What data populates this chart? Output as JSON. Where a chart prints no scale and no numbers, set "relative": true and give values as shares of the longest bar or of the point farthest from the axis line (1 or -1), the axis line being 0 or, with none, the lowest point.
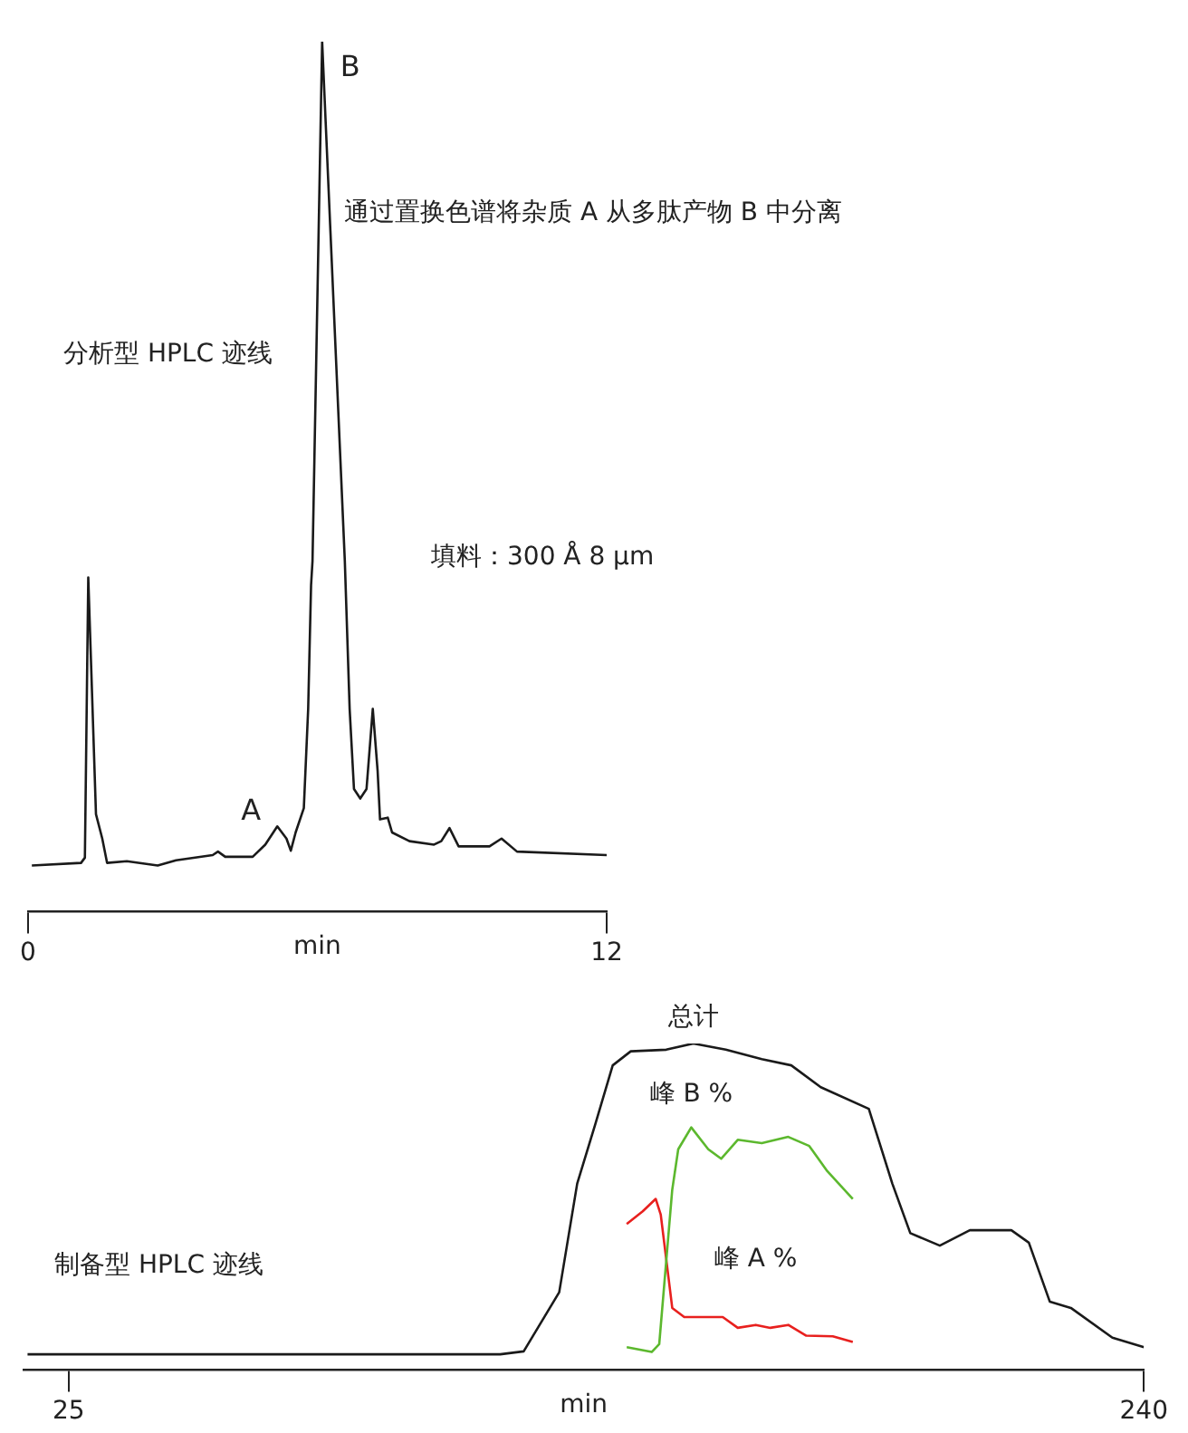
{
  "chart_data": [
    {
      "type": "line",
      "title": "通过置换色谱将杂质 A 从多肽产物 B 中分离",
      "xlabel": "min",
      "xlim": [
        0,
        12
      ],
      "xticks": [
        0,
        12
      ],
      "relative": true,
      "grid": false,
      "legend": false,
      "annotations": [
        "分析型 HPLC 迹线",
        "填料：300 Å 8 µm",
        {
          "text": "B",
          "x": 6.1,
          "y": 1.0
        },
        {
          "text": "A",
          "x": 5.17,
          "y": 0.098
        }
      ],
      "series": [
        {
          "color": "#1a1a1a",
          "x": [
            0.08,
            1.1,
            1.18,
            1.25,
            1.41,
            1.54,
            1.64,
            2.05,
            2.69,
            3.07,
            3.83,
            3.94,
            4.09,
            4.66,
            4.92,
            5.17,
            5.36,
            5.45,
            5.55,
            5.72,
            5.81,
            5.87,
            5.9,
            6.1,
            6.57,
            6.67,
            6.76,
            6.89,
            7.02,
            7.15,
            7.25,
            7.3,
            7.46,
            7.55,
            7.91,
            8.42,
            8.57,
            8.74,
            8.93,
            9.57,
            9.82,
            10.14,
            12.0
          ],
          "values": [
            0.053,
            0.056,
            0.062,
            0.384,
            0.112,
            0.084,
            0.056,
            0.058,
            0.053,
            0.059,
            0.065,
            0.069,
            0.063,
            0.063,
            0.077,
            0.098,
            0.084,
            0.07,
            0.091,
            0.119,
            0.233,
            0.375,
            0.403,
            1.0,
            0.403,
            0.233,
            0.141,
            0.13,
            0.141,
            0.233,
            0.162,
            0.106,
            0.108,
            0.091,
            0.081,
            0.077,
            0.081,
            0.096,
            0.075,
            0.075,
            0.084,
            0.069,
            0.065
          ]
        }
      ]
    },
    {
      "type": "line",
      "xlabel": "min",
      "xlim": [
        16,
        240
      ],
      "xticks": [
        25,
        240
      ],
      "relative": true,
      "grid": false,
      "legend": false,
      "annotations": [
        "制备型 HPLC 迹线"
      ],
      "series": [
        {
          "name": "总计",
          "color": "#1a1a1a",
          "x": [
            16.8,
            111.3,
            116,
            123.1,
            126.7,
            130.3,
            133.8,
            137.4,
            144.5,
            149.9,
            156.4,
            163.6,
            169.5,
            175.4,
            185,
            189.7,
            193.3,
            199.2,
            205.2,
            213.5,
            217,
            221.2,
            225.4,
            233.7,
            240
          ],
          "values": [
            0.048,
            0.048,
            0.057,
            0.238,
            0.571,
            0.752,
            0.933,
            0.976,
            0.981,
            1.0,
            0.981,
            0.952,
            0.933,
            0.866,
            0.8,
            0.571,
            0.419,
            0.381,
            0.428,
            0.428,
            0.39,
            0.209,
            0.19,
            0.099,
            0.07
          ]
        },
        {
          "name": "峰 B %",
          "color": "#5cb82e",
          "x": [
            136.6,
            141.6,
            143.1,
            145.7,
            146.9,
            149.5,
            152.9,
            155.5,
            158.8,
            163.6,
            168.9,
            173.1,
            176.7,
            181.8
          ],
          "values": [
            0.07,
            0.055,
            0.079,
            0.552,
            0.676,
            0.743,
            0.676,
            0.647,
            0.705,
            0.695,
            0.714,
            0.686,
            0.609,
            0.524
          ]
        },
        {
          "name": "峰 A %",
          "color": "#e8201e",
          "x": [
            136.6,
            139.8,
            142.4,
            143.4,
            145.7,
            148.1,
            155.8,
            158.8,
            162.4,
            165.3,
            168.9,
            172.5,
            177.8,
            181.8
          ],
          "values": [
            0.447,
            0.486,
            0.524,
            0.476,
            0.19,
            0.162,
            0.162,
            0.129,
            0.138,
            0.129,
            0.138,
            0.105,
            0.103,
            0.086
          ]
        }
      ]
    }
  ]
}
